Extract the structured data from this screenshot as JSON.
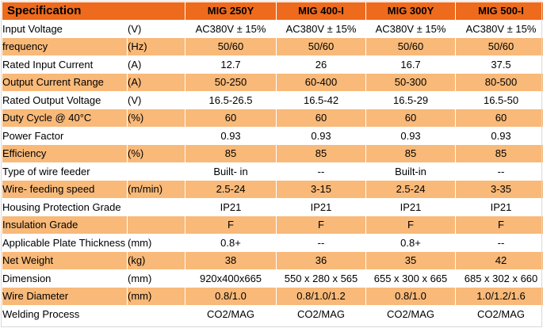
{
  "header": {
    "label": "Specification",
    "models": [
      "MIG 250Y",
      "MIG 400-I",
      "MIG 300Y",
      "MIG 500-I"
    ]
  },
  "rows": [
    {
      "label": "Input Voltage",
      "unit": "(V)",
      "values": [
        "AC380V ± 15%",
        "AC380V ± 15%",
        "AC380V ± 15%",
        "AC380V ± 15%"
      ]
    },
    {
      "label": "frequency",
      "unit": "(Hz)",
      "values": [
        "50/60",
        "50/60",
        "50/60",
        "50/60"
      ]
    },
    {
      "label": "Rated Input Current",
      "unit": "(A)",
      "values": [
        "12.7",
        "26",
        "16.7",
        "37.5"
      ]
    },
    {
      "label": "Output Current Range",
      "unit": "(A)",
      "values": [
        "50-250",
        "60-400",
        "50-300",
        "80-500"
      ]
    },
    {
      "label": "Rated Output Voltage",
      "unit": "(V)",
      "values": [
        "16.5-26.5",
        "16.5-42",
        "16.5-29",
        "16.5-50"
      ]
    },
    {
      "label": "Duty Cycle @ 40°C",
      "unit": "(%)",
      "values": [
        "60",
        "60",
        "60",
        "60"
      ]
    },
    {
      "label": "Power Factor",
      "unit": "",
      "values": [
        "0.93",
        "0.93",
        "0.93",
        "0.93"
      ]
    },
    {
      "label": "Efficiency",
      "unit": "(%)",
      "values": [
        "85",
        "85",
        "85",
        "85"
      ]
    },
    {
      "label": "Type of wire feeder",
      "unit": "",
      "values": [
        "Built- in",
        "--",
        "Built-in",
        "--"
      ]
    },
    {
      "label": "Wire- feeding speed",
      "unit": "(m/min)",
      "values": [
        "2.5-24",
        "3-15",
        "2.5-24",
        "3-35"
      ]
    },
    {
      "label": "Housing Protection Grade",
      "unit": "",
      "values": [
        "IP21",
        "IP21",
        "IP21",
        "IP21"
      ]
    },
    {
      "label": "Insulation Grade",
      "unit": "",
      "values": [
        "F",
        "F",
        "F",
        "F"
      ]
    },
    {
      "label": "Applicable Plate Thickness",
      "unit": "(mm)",
      "values": [
        "0.8+",
        "--",
        "0.8+",
        "--"
      ]
    },
    {
      "label": "Net Weight",
      "unit": "(kg)",
      "values": [
        "38",
        "36",
        "35",
        "42"
      ]
    },
    {
      "label": "Dimension",
      "unit": "(mm)",
      "values": [
        "920x400x665",
        "550 x 280 x 565",
        "655 x 300 x 665",
        "685 x 302 x 660"
      ]
    },
    {
      "label": "Wire Diameter",
      "unit": "(mm)",
      "values": [
        "0.8/1.0",
        "0.8/1.0/1.2",
        "0.8/1.0",
        "1.0/1.2/1.6"
      ]
    },
    {
      "label": "Welding Process",
      "unit": "",
      "values": [
        "CO2/MAG",
        "CO2/MAG",
        "CO2/MAG",
        "CO2/MAG"
      ]
    }
  ],
  "colors": {
    "header_bg": "#ee6a1c",
    "header_text": "#ffffff",
    "stripe": "#f8b979",
    "row_bg": "#ffffff"
  }
}
